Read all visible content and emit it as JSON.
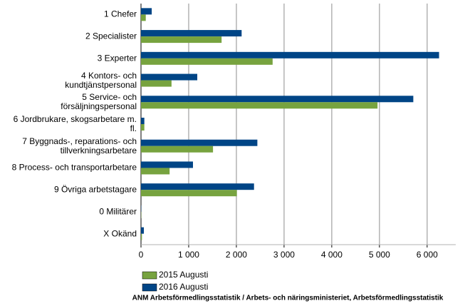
{
  "chart_data": {
    "type": "barh",
    "categories": [
      "1 Chefer",
      "2 Specialister",
      "3 Experter",
      "4 Kontors- och\nkundtjänstpersonal",
      "5 Service- och\nförsäljningspersonal",
      "6 Jordbrukare, skogsarbetare m.\nfl.",
      "7 Byggnads-, reparations- och\ntillverkningsarbetare",
      "8 Process- och transportarbetare",
      "9 Övriga arbetstagare",
      "0 Militärer",
      "X Okänd"
    ],
    "series": [
      {
        "name": "2015 Augusti",
        "color": "#77a33f",
        "values": [
          100,
          1690,
          2760,
          640,
          4960,
          70,
          1510,
          600,
          2010,
          5,
          20
        ]
      },
      {
        "name": "2016 Augusti",
        "color": "#004586",
        "values": [
          225,
          2110,
          6250,
          1180,
          5710,
          70,
          2440,
          1090,
          2370,
          5,
          60
        ]
      }
    ],
    "xlim": [
      0,
      6600
    ],
    "xticks": [
      0,
      {
        "value": 1000,
        "label": "1 000"
      },
      {
        "value": 2000,
        "label": "2 000"
      },
      {
        "value": 3000,
        "label": "3 000"
      },
      {
        "value": 4000,
        "label": "4 000"
      },
      {
        "value": 5000,
        "label": "5 000"
      },
      {
        "value": 6000,
        "label": "6 000"
      }
    ],
    "grid": true,
    "legend": "bottom",
    "source": "ANM Arbetsförmedlingsstatistik / Arbets- och näringsministeriet, Arbetsförmedlingsstatistik"
  }
}
